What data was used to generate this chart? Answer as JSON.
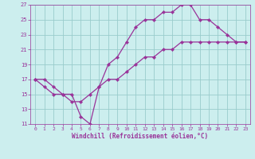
{
  "xlabel": "Windchill (Refroidissement éolien,°C)",
  "hours": [
    0,
    1,
    2,
    3,
    4,
    5,
    6,
    7,
    8,
    9,
    10,
    11,
    12,
    13,
    14,
    15,
    16,
    17,
    18,
    19,
    20,
    21,
    22,
    23
  ],
  "temp": [
    17,
    17,
    16,
    15,
    15,
    12,
    11,
    16,
    19,
    20,
    22,
    24,
    25,
    25,
    26,
    26,
    27,
    27,
    25,
    25,
    24,
    23,
    22,
    22
  ],
  "windchill": [
    17,
    16,
    15,
    15,
    14,
    14,
    15,
    16,
    17,
    17,
    18,
    19,
    20,
    20,
    21,
    21,
    22,
    22,
    22,
    22,
    22,
    22,
    22,
    22
  ],
  "line_color": "#993399",
  "marker": "D",
  "markersize": 2.2,
  "linewidth": 0.9,
  "bg_color": "#cceeee",
  "grid_color": "#99cccc",
  "ylim": [
    11,
    27
  ],
  "yticks": [
    11,
    13,
    15,
    17,
    19,
    21,
    23,
    25,
    27
  ],
  "xlim": [
    -0.5,
    23.5
  ],
  "xticks": [
    0,
    1,
    2,
    3,
    4,
    5,
    6,
    7,
    8,
    9,
    10,
    11,
    12,
    13,
    14,
    15,
    16,
    17,
    18,
    19,
    20,
    21,
    22,
    23
  ],
  "tick_fontsize": 5.0,
  "xlabel_fontsize": 5.5
}
